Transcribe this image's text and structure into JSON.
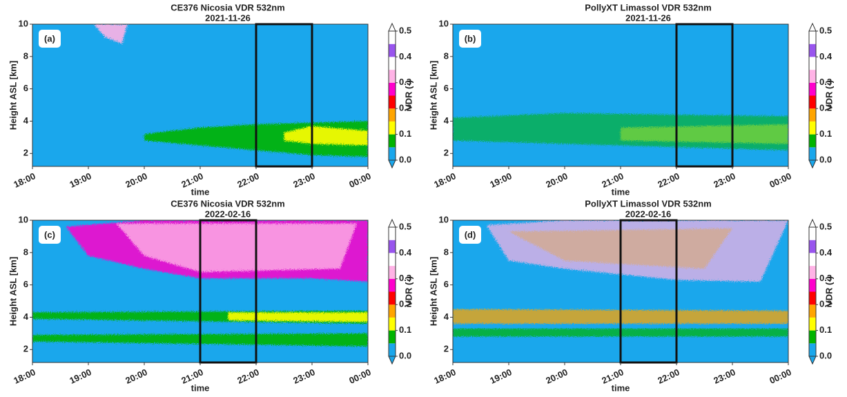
{
  "chart_data": [
    {
      "type": "heatmap",
      "title": "CE376 Nicosia VDR 532nm",
      "subtitle": "2021-11-26",
      "panel_label": "(a)",
      "xlabel": "time",
      "ylabel": "Height ASL [km]",
      "xlim": [
        18,
        24
      ],
      "xticks": [
        {
          "value": 18,
          "label": "18:00"
        },
        {
          "value": 19,
          "label": "19:00"
        },
        {
          "value": 20,
          "label": "20:00"
        },
        {
          "value": 21,
          "label": "21:00"
        },
        {
          "value": 22,
          "label": "22:00"
        },
        {
          "value": 23,
          "label": "23:00"
        },
        {
          "value": 24,
          "label": "00:00"
        }
      ],
      "ylim": [
        1.2,
        10
      ],
      "yticks": [
        2,
        4,
        6,
        8,
        10
      ],
      "colorbar_label": "VDR (-)",
      "clim": [
        0,
        0.5
      ],
      "cticks": [
        {
          "value": 0,
          "label": "0.0"
        },
        0.1,
        0.2,
        0.3,
        0.4,
        0.5
      ],
      "colors": [
        "#1aa7ec",
        "#00b400",
        "#ffff00",
        "#ffa500",
        "#ff0000",
        "#ff00cc",
        "#ffb3e6",
        "#ffffff",
        "#9955ee",
        "#ffffff"
      ],
      "highlight": [
        22,
        23
      ]
    },
    {
      "type": "heatmap",
      "title": "PollyXT Limassol VDR 532nm",
      "subtitle": "2021-11-26",
      "panel_label": "(b)",
      "xlabel": "time",
      "ylabel": "Height ASL [km]",
      "xlim": [
        18,
        24
      ],
      "xticks": [
        {
          "value": 18,
          "label": "18:00"
        },
        {
          "value": 19,
          "label": "19:00"
        },
        {
          "value": 20,
          "label": "20:00"
        },
        {
          "value": 21,
          "label": "21:00"
        },
        {
          "value": 22,
          "label": "22:00"
        },
        {
          "value": 23,
          "label": "23:00"
        },
        {
          "value": 24,
          "label": "00:00"
        }
      ],
      "ylim": [
        1.2,
        10
      ],
      "yticks": [
        2,
        4,
        6,
        8,
        10
      ],
      "colorbar_label": "VDR (-)",
      "clim": [
        0,
        0.5
      ],
      "cticks": [
        {
          "value": 0,
          "label": "0.0"
        },
        0.1,
        0.2,
        0.3,
        0.4,
        0.5
      ],
      "colors": [
        "#1aa7ec",
        "#00b400",
        "#ffff00",
        "#ffa500",
        "#ff0000",
        "#ff00cc",
        "#ffb3e6",
        "#ffffff",
        "#9955ee",
        "#ffffff"
      ],
      "highlight": [
        22,
        23
      ]
    },
    {
      "type": "heatmap",
      "title": "CE376 Nicosia VDR 532nm",
      "subtitle": "2022-02-16",
      "panel_label": "(c)",
      "xlabel": "time",
      "ylabel": "Height ASL [km]",
      "xlim": [
        18,
        24
      ],
      "xticks": [
        {
          "value": 18,
          "label": "18:00"
        },
        {
          "value": 19,
          "label": "19:00"
        },
        {
          "value": 20,
          "label": "20:00"
        },
        {
          "value": 21,
          "label": "21:00"
        },
        {
          "value": 22,
          "label": "22:00"
        },
        {
          "value": 23,
          "label": "23:00"
        },
        {
          "value": 24,
          "label": "00:00"
        }
      ],
      "ylim": [
        1.2,
        10
      ],
      "yticks": [
        2,
        4,
        6,
        8,
        10
      ],
      "colorbar_label": "VDR (-)",
      "clim": [
        0,
        0.5
      ],
      "cticks": [
        {
          "value": 0,
          "label": "0.0"
        },
        0.1,
        0.2,
        0.3,
        0.4,
        0.5
      ],
      "colors": [
        "#1aa7ec",
        "#00b400",
        "#ffff00",
        "#ffa500",
        "#ff0000",
        "#ff00cc",
        "#ffb3e6",
        "#ffffff",
        "#9955ee",
        "#ffffff"
      ],
      "highlight": [
        21,
        22
      ]
    },
    {
      "type": "heatmap",
      "title": "PollyXT Limassol VDR 532nm",
      "subtitle": "2022-02-16",
      "panel_label": "(d)",
      "xlabel": "time",
      "ylabel": "Height ASL [km]",
      "xlim": [
        18,
        24
      ],
      "xticks": [
        {
          "value": 18,
          "label": "18:00"
        },
        {
          "value": 19,
          "label": "19:00"
        },
        {
          "value": 20,
          "label": "20:00"
        },
        {
          "value": 21,
          "label": "21:00"
        },
        {
          "value": 22,
          "label": "22:00"
        },
        {
          "value": 23,
          "label": "23:00"
        },
        {
          "value": 24,
          "label": "00:00"
        }
      ],
      "ylim": [
        1.2,
        10
      ],
      "yticks": [
        2,
        4,
        6,
        8,
        10
      ],
      "colorbar_label": "VDR (-)",
      "clim": [
        0,
        0.5
      ],
      "cticks": [
        {
          "value": 0,
          "label": "0.0"
        },
        0.1,
        0.2,
        0.3,
        0.4,
        0.5
      ],
      "colors": [
        "#1aa7ec",
        "#00b400",
        "#ffff00",
        "#ffa500",
        "#ff0000",
        "#ff00cc",
        "#ffb3e6",
        "#ffffff",
        "#9955ee",
        "#ffffff"
      ],
      "highlight": [
        21,
        22
      ]
    }
  ]
}
